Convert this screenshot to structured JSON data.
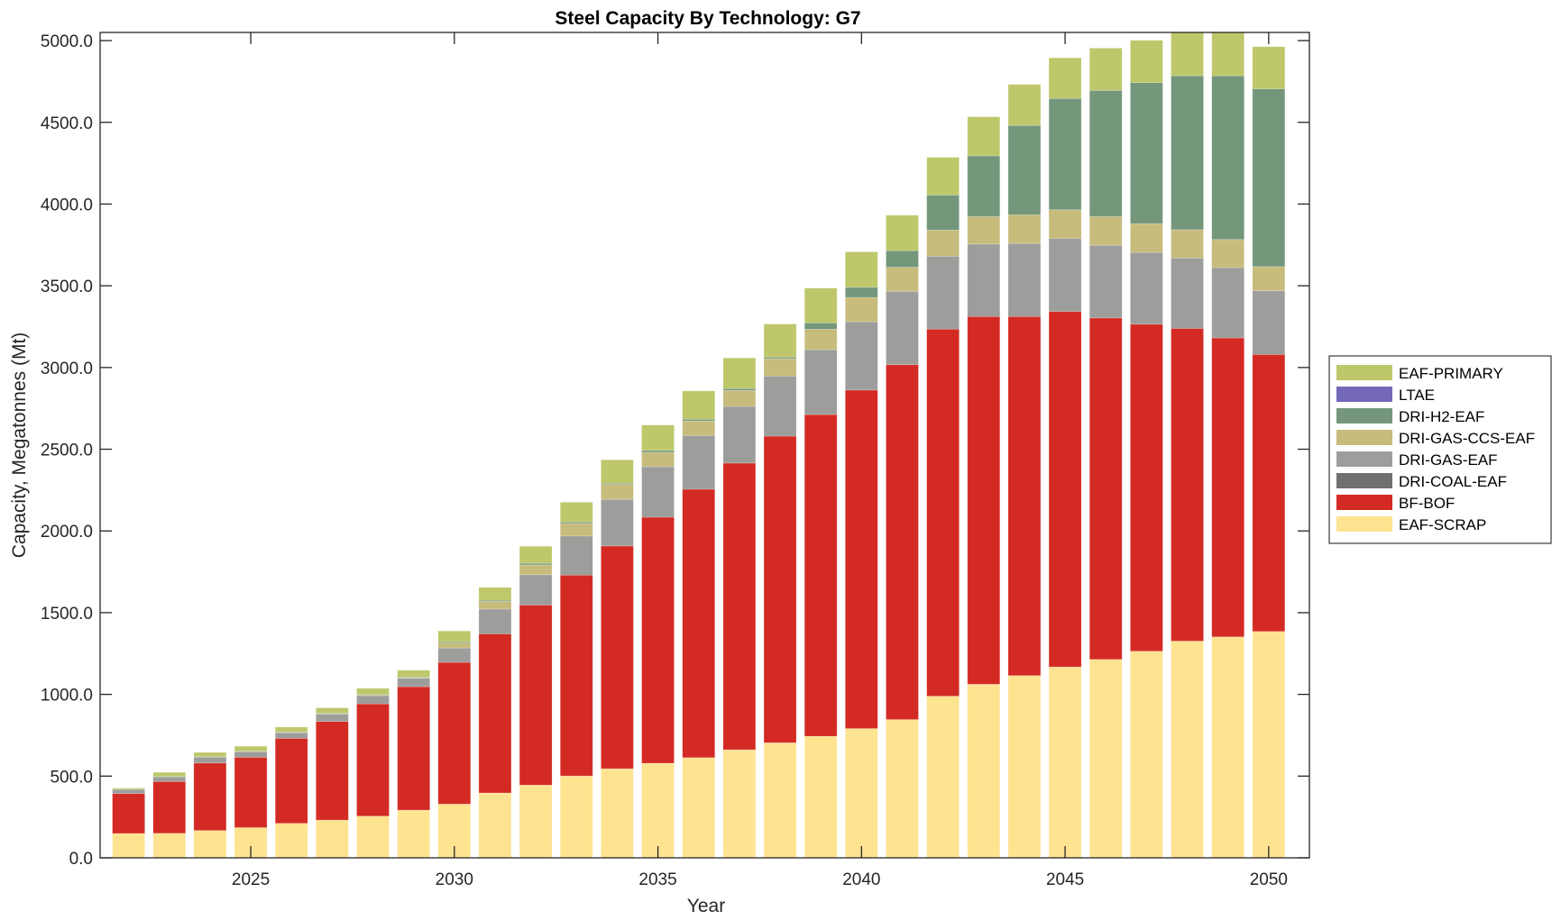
{
  "chart_data": {
    "type": "bar",
    "stacked": true,
    "title": "Steel Capacity By Technology: G7",
    "xlabel": "Year",
    "ylabel": "Capacity, Megatonnes (Mt)",
    "xlim": [
      2021.3,
      2051.0
    ],
    "ylim": [
      0,
      5050
    ],
    "x_ticks": [
      2025,
      2030,
      2035,
      2040,
      2045,
      2050
    ],
    "y_ticks": [
      0,
      500,
      1000,
      1500,
      2000,
      2500,
      3000,
      3500,
      4000,
      4500,
      5000
    ],
    "y_tick_labels": [
      "0.0",
      "500.0",
      "1000.0",
      "1500.0",
      "2000.0",
      "2500.0",
      "3000.0",
      "3500.0",
      "4000.0",
      "4500.0",
      "5000.0"
    ],
    "x_tick_labels": [
      "2025",
      "2030",
      "2035",
      "2040",
      "2045",
      "2050"
    ],
    "grid": false,
    "legend_position": "right",
    "categories": [
      2022,
      2023,
      2024,
      2025,
      2026,
      2027,
      2028,
      2029,
      2030,
      2031,
      2032,
      2033,
      2034,
      2035,
      2036,
      2037,
      2038,
      2039,
      2040,
      2041,
      2042,
      2043,
      2044,
      2045,
      2046,
      2047,
      2048,
      2049,
      2050
    ],
    "series": [
      {
        "name": "EAF-SCRAP",
        "color": "#fee391",
        "values": [
          149,
          150,
          167,
          185,
          211,
          231,
          255,
          292,
          329,
          397,
          445,
          501,
          545,
          579,
          613,
          661,
          704,
          744,
          791,
          846,
          989,
          1062,
          1115,
          1168,
          1214,
          1264,
          1326,
          1352,
          1385
        ]
      },
      {
        "name": "BF-BOF",
        "color": "#d42a24",
        "values": [
          244,
          317,
          413,
          430,
          520,
          603,
          687,
          755,
          867,
          973,
          1102,
          1229,
          1363,
          1505,
          1642,
          1754,
          1876,
          1968,
          2071,
          2171,
          2246,
          2250,
          2197,
          2175,
          2089,
          2001,
          1913,
          1829,
          1695
        ]
      },
      {
        "name": "DRI-COAL-EAF",
        "color": "#707070",
        "values": [
          0,
          0,
          0,
          0,
          0,
          0,
          0,
          0,
          0,
          0,
          0,
          0,
          0,
          0,
          0,
          0,
          0,
          0,
          0,
          0,
          0,
          0,
          0,
          0,
          0,
          0,
          0,
          0,
          0
        ]
      },
      {
        "name": "DRI-GAS-EAF",
        "color": "#9d9d9b",
        "values": [
          26,
          29,
          37,
          35,
          36,
          46,
          51,
          53,
          88,
          152,
          185,
          239,
          285,
          309,
          329,
          347,
          368,
          397,
          418,
          449,
          446,
          443,
          447,
          447,
          445,
          439,
          431,
          430,
          389
        ]
      },
      {
        "name": "DRI-GAS-CCS-EAF",
        "color": "#c7bc7c",
        "values": [
          0,
          0,
          1,
          1,
          1,
          2,
          2,
          2,
          31,
          47,
          60,
          77,
          92,
          88,
          89,
          98,
          106,
          125,
          149,
          147,
          160,
          168,
          175,
          175,
          175,
          176,
          173,
          172,
          148
        ]
      },
      {
        "name": "DRI-H2-EAF",
        "color": "#74977c",
        "values": [
          1,
          1,
          1,
          1,
          2,
          3,
          3,
          4,
          7,
          7,
          10,
          9,
          7,
          11,
          11,
          11,
          9,
          39,
          62,
          102,
          214,
          372,
          547,
          681,
          772,
          863,
          942,
          1002,
          1088
        ]
      },
      {
        "name": "LTAE",
        "color": "#7369b8",
        "values": [
          0,
          0,
          0,
          0,
          0,
          0,
          0,
          0,
          0,
          0,
          0,
          0,
          0,
          0,
          0,
          0,
          0,
          0,
          0,
          0,
          0,
          0,
          0,
          0,
          0,
          0,
          0,
          0,
          0
        ]
      },
      {
        "name": "EAF-PRIMARY",
        "color": "#bec86b",
        "values": [
          7,
          26,
          26,
          31,
          30,
          33,
          39,
          42,
          66,
          79,
          104,
          121,
          143,
          156,
          173,
          187,
          203,
          213,
          217,
          217,
          231,
          239,
          251,
          249,
          259,
          259,
          265,
          265,
          258
        ]
      }
    ],
    "legend_order": [
      "EAF-PRIMARY",
      "LTAE",
      "DRI-H2-EAF",
      "DRI-GAS-CCS-EAF",
      "DRI-GAS-EAF",
      "DRI-COAL-EAF",
      "BF-BOF",
      "EAF-SCRAP"
    ]
  }
}
